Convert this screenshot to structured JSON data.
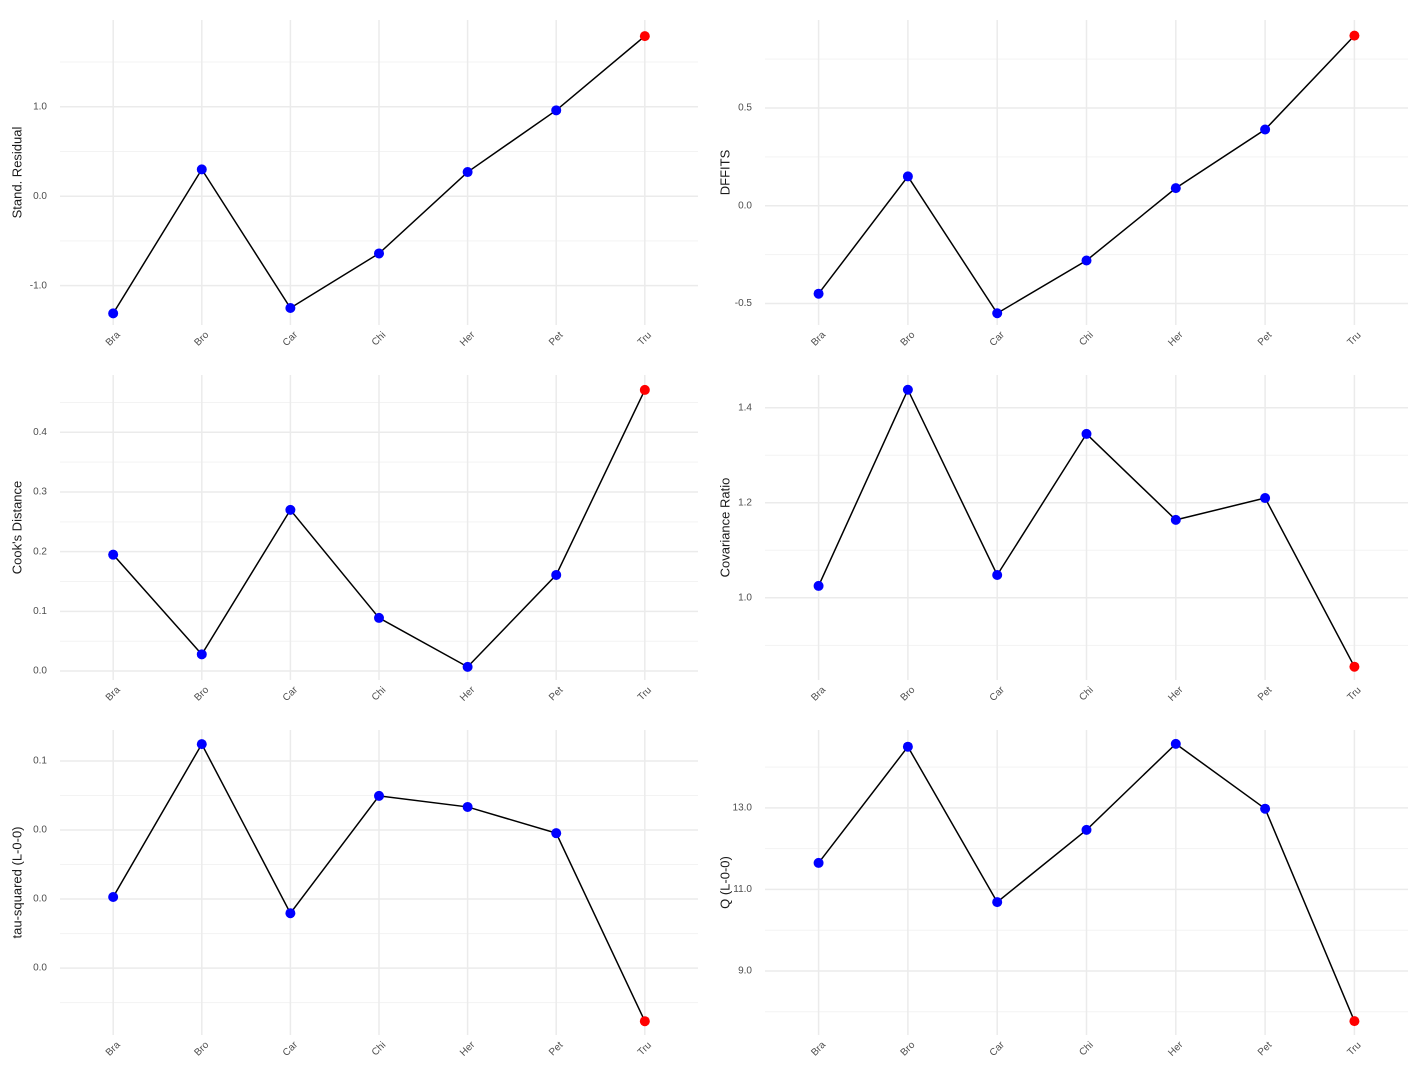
{
  "chart_data": [
    {
      "type": "line",
      "y_label": "Stand. Residual",
      "categories": [
        "Bra",
        "Bro",
        "Car",
        "Chi",
        "Her",
        "Pet",
        "Tru"
      ],
      "values": [
        -1.31,
        0.3,
        -1.25,
        -0.64,
        0.27,
        0.96,
        1.79
      ],
      "line_color": "black",
      "point_colors": [
        "blue",
        "blue",
        "blue",
        "blue",
        "blue",
        "blue",
        "red"
      ],
      "ylim": [
        -1.44,
        1.97
      ],
      "yticks": [
        {
          "value": -1,
          "label": "-1.0"
        },
        {
          "value": 0,
          "label": "0.0"
        },
        {
          "value": 1,
          "label": "1.0"
        }
      ],
      "grid": true
    },
    {
      "type": "line",
      "y_label": "DFFITS",
      "categories": [
        "Bra",
        "Bro",
        "Car",
        "Chi",
        "Her",
        "Pet",
        "Tru"
      ],
      "values": [
        -0.45,
        0.15,
        -0.55,
        -0.28,
        0.09,
        0.39,
        0.87
      ],
      "line_color": "black",
      "point_colors": [
        "blue",
        "blue",
        "blue",
        "blue",
        "blue",
        "blue",
        "red"
      ],
      "ylim": [
        -0.61,
        0.95
      ],
      "yticks": [
        -0.5,
        {
          "value": 0,
          "label": "0.0"
        },
        0.5
      ],
      "grid": true
    },
    {
      "type": "line",
      "y_label": "Cook's Distance",
      "categories": [
        "Bra",
        "Bro",
        "Car",
        "Chi",
        "Her",
        "Pet",
        "Tru"
      ],
      "values": [
        0.195,
        0.028,
        0.27,
        0.089,
        0.007,
        0.161,
        0.471
      ],
      "line_color": "black",
      "point_colors": [
        "blue",
        "blue",
        "blue",
        "blue",
        "blue",
        "blue",
        "red"
      ],
      "ylim": [
        -0.015,
        0.496
      ],
      "yticks": [
        {
          "value": 0,
          "label": "0.0"
        },
        0.1,
        0.2,
        0.3,
        0.4
      ],
      "grid": true
    },
    {
      "type": "line",
      "y_label": "Covariance Ratio",
      "categories": [
        "Bra",
        "Bro",
        "Car",
        "Chi",
        "Her",
        "Pet",
        "Tru"
      ],
      "values": [
        1.025,
        1.438,
        1.048,
        1.345,
        1.164,
        1.21,
        0.855
      ],
      "line_color": "black",
      "point_colors": [
        "blue",
        "blue",
        "blue",
        "blue",
        "blue",
        "blue",
        "red"
      ],
      "ylim": [
        0.827,
        1.469
      ],
      "yticks": [
        {
          "value": 1,
          "label": "1.0"
        },
        1.2,
        1.4
      ],
      "grid": true
    },
    {
      "type": "line",
      "y_label": "tau-squared (L-0-0)",
      "categories": [
        "Bra",
        "Bro",
        "Car",
        "Chi",
        "Her",
        "Pet",
        "Tru"
      ],
      "values": [
        0.0206,
        0.0649,
        0.0159,
        0.0499,
        0.0467,
        0.0391,
        -0.0154
      ],
      "line_color": "black",
      "point_colors": [
        "blue",
        "blue",
        "blue",
        "blue",
        "blue",
        "blue",
        "red"
      ],
      "ylim": [
        -0.0194,
        0.069
      ],
      "yticks": [
        {
          "value": 0,
          "label": "0.0"
        },
        {
          "value": 0.02,
          "label": "0.0"
        },
        {
          "value": 0.04,
          "label": "0.0"
        },
        {
          "value": 0.06,
          "label": "0.1"
        }
      ],
      "grid": true
    },
    {
      "type": "line",
      "y_label": "Q (L-0-0)",
      "categories": [
        "Bra",
        "Bro",
        "Car",
        "Chi",
        "Her",
        "Pet",
        "Tru"
      ],
      "values": [
        11.65,
        14.5,
        10.69,
        12.46,
        14.57,
        12.98,
        7.77
      ],
      "line_color": "black",
      "point_colors": [
        "blue",
        "blue",
        "blue",
        "blue",
        "blue",
        "blue",
        "red"
      ],
      "ylim": [
        7.43,
        14.91
      ],
      "yticks": [
        {
          "value": 9,
          "label": "9.0"
        },
        {
          "value": 11,
          "label": "11.0"
        },
        {
          "value": 13,
          "label": "13.0"
        }
      ],
      "grid": true
    }
  ]
}
